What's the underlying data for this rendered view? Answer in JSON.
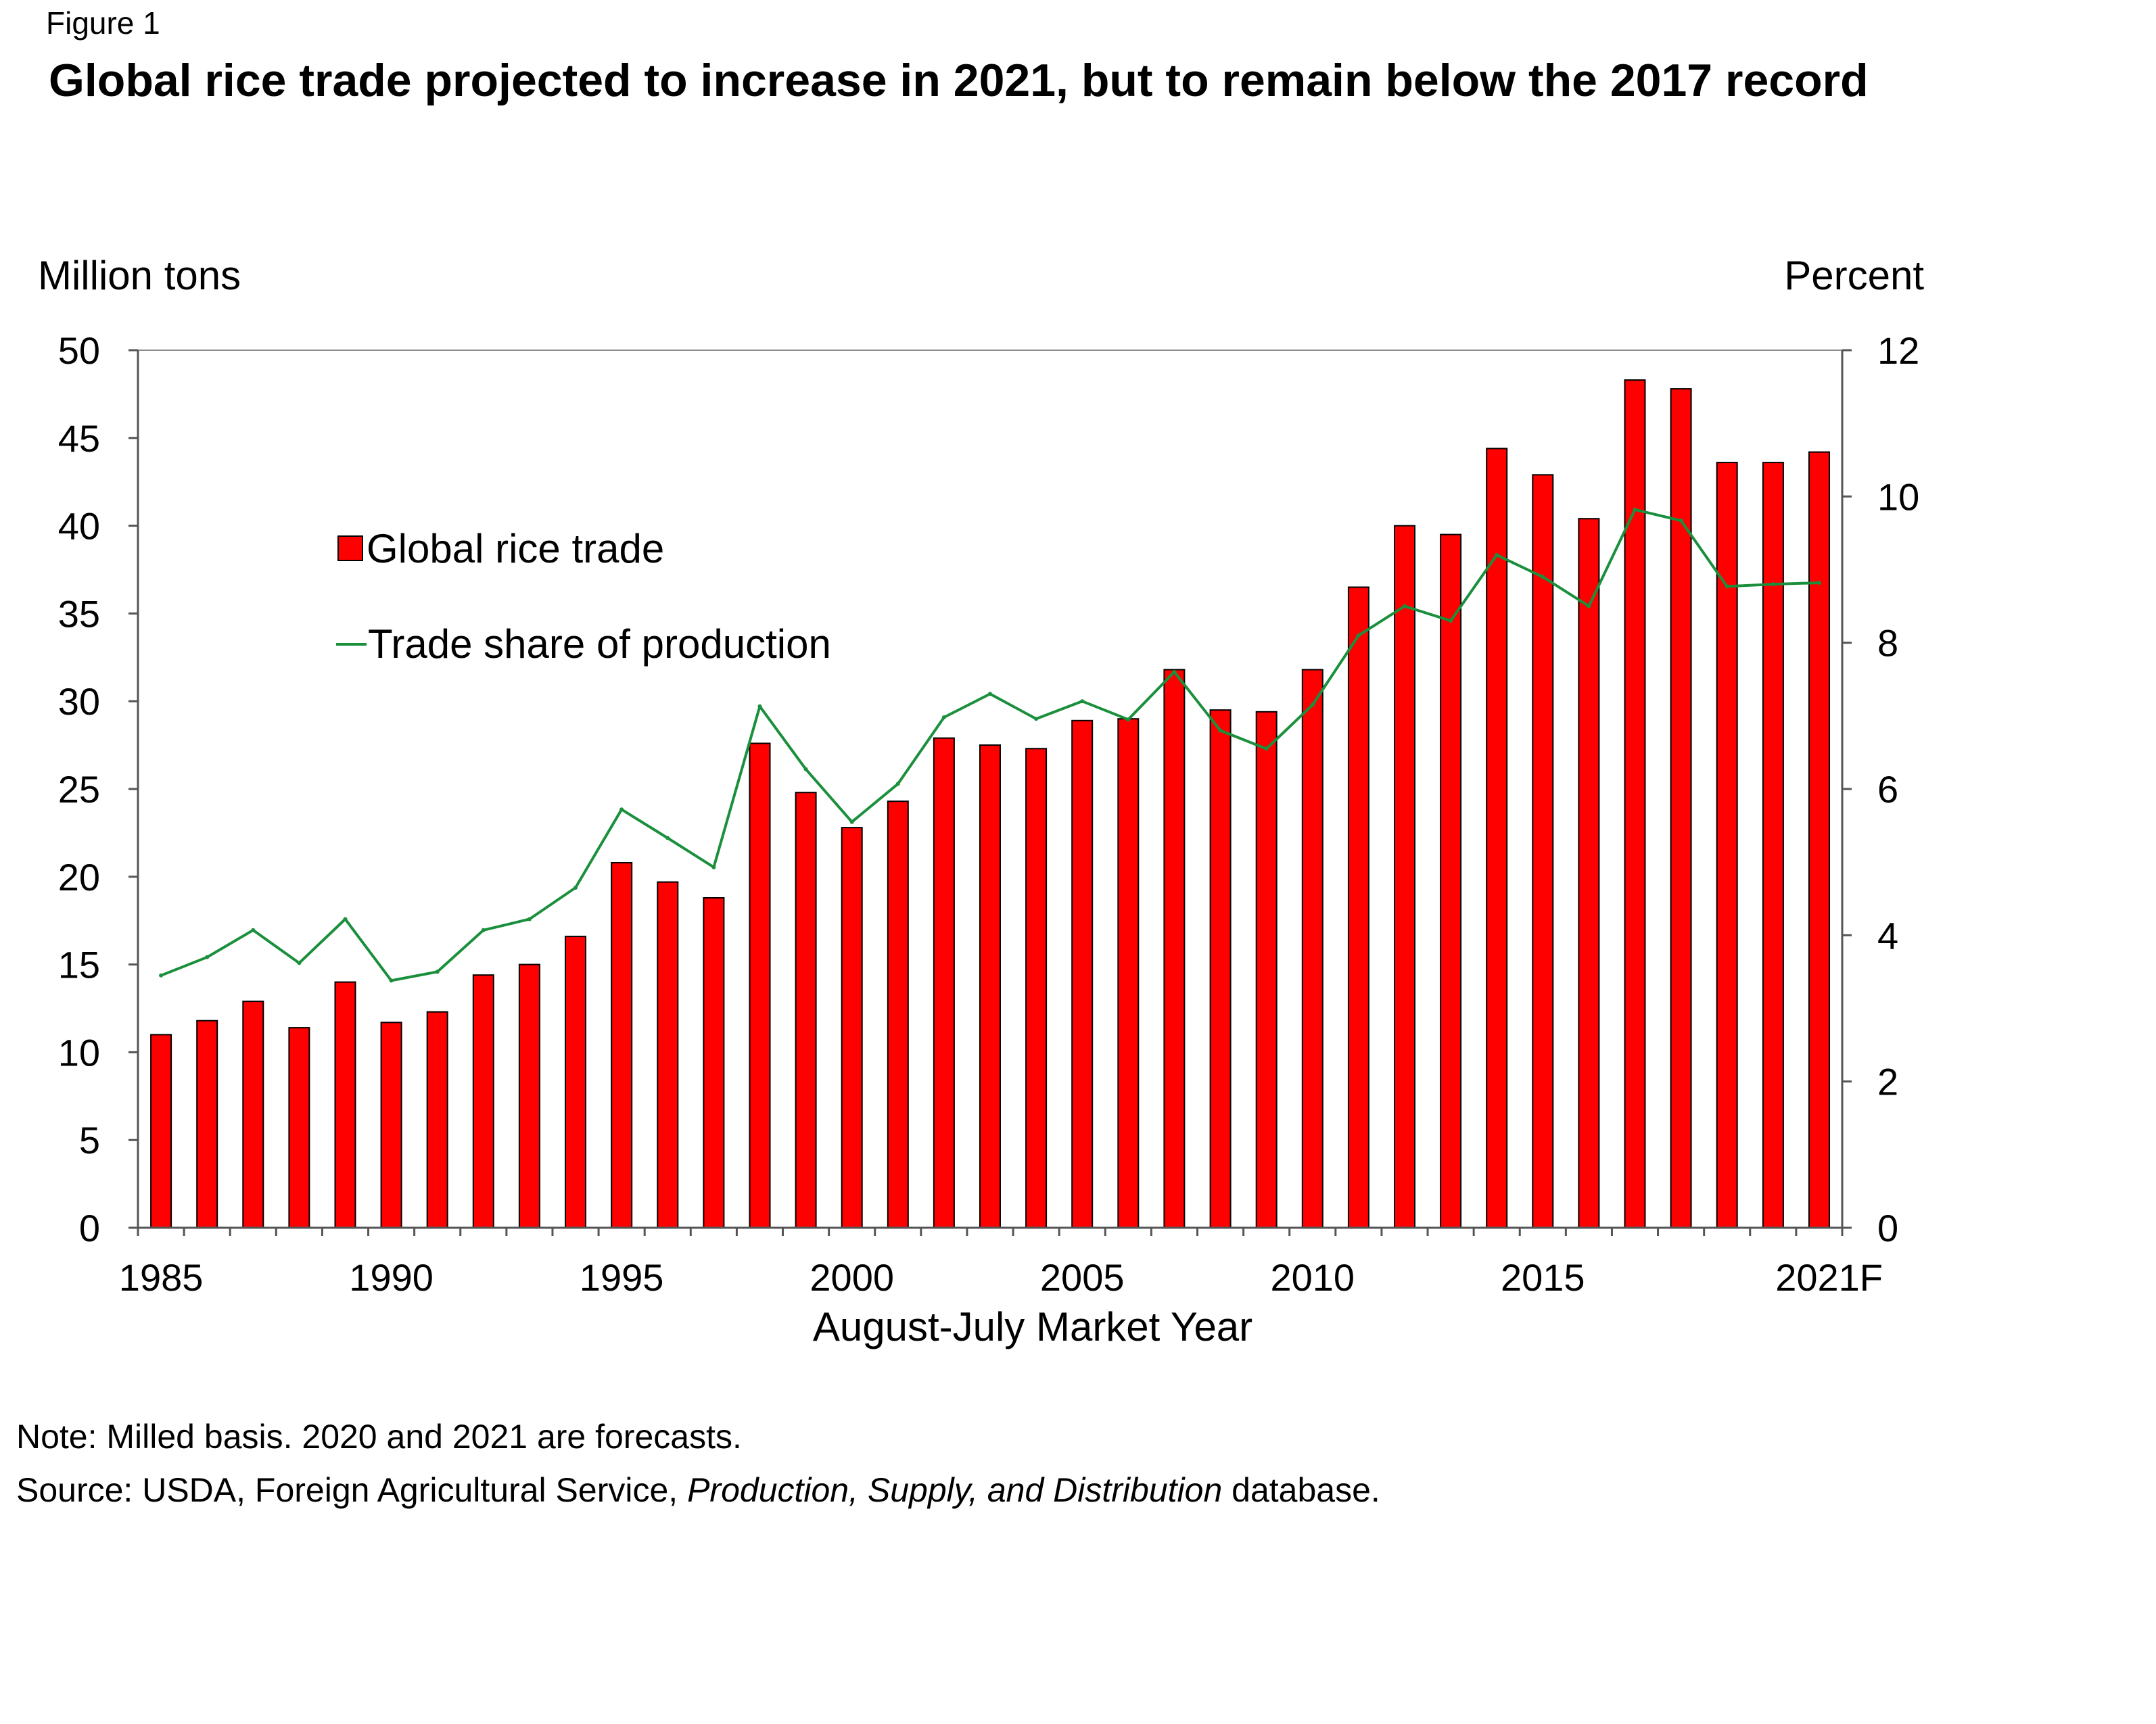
{
  "figure_label": "Figure 1",
  "title": "Global rice trade projected to increase in 2021, but to remain below the 2017 record",
  "note": {
    "line1": "Note: Milled basis. 2020 and 2021 are forecasts.",
    "source_prefix": "Source: USDA, Foreign Agricultural Service, ",
    "source_italic": "Production, Supply, and Distribution",
    "source_suffix": " database."
  },
  "colors": {
    "bar": "#ff0000",
    "bar_edge": "#000000",
    "line": "#1a8f3c"
  },
  "chart_data": {
    "type": "bar",
    "title": "Global rice trade projected to increase in 2021, but to remain below the 2017 record",
    "xlabel": "August-July Market Year",
    "ylabel": "Million tons",
    "y2label": "Percent",
    "ylim": [
      0,
      50
    ],
    "y2lim": [
      0,
      12
    ],
    "yticks": [
      "0",
      "5",
      "10",
      "15",
      "20",
      "25",
      "30",
      "35",
      "40",
      "45",
      "50"
    ],
    "y2ticks": [
      "0",
      "2",
      "4",
      "6",
      "8",
      "10",
      "12"
    ],
    "categories": [
      "1985",
      "1986",
      "1987",
      "1988",
      "1989",
      "1990",
      "1991",
      "1992",
      "1993",
      "1994",
      "1995",
      "1996",
      "1997",
      "1998",
      "1999",
      "2000",
      "2001",
      "2002",
      "2003",
      "2004",
      "2005",
      "2006",
      "2007",
      "2008",
      "2009",
      "2010",
      "2011",
      "2012",
      "2013",
      "2014",
      "2015",
      "2016",
      "2017",
      "2018",
      "2019",
      "2020",
      "2021F"
    ],
    "xtick_labels": [
      {
        "index": 0,
        "label": "1985"
      },
      {
        "index": 5,
        "label": "1990"
      },
      {
        "index": 10,
        "label": "1995"
      },
      {
        "index": 15,
        "label": "2000"
      },
      {
        "index": 20,
        "label": "2005"
      },
      {
        "index": 25,
        "label": "2010"
      },
      {
        "index": 30,
        "label": "2015"
      },
      {
        "index": 36,
        "label": "2021F"
      }
    ],
    "legend": {
      "placement": "upper-left"
    },
    "series": [
      {
        "name": "Global rice trade",
        "type": "bar",
        "axis": "left",
        "values": [
          11.0,
          11.8,
          12.9,
          11.4,
          14.0,
          11.7,
          12.3,
          14.4,
          15.0,
          16.6,
          20.8,
          19.7,
          18.8,
          27.6,
          24.8,
          22.8,
          24.3,
          27.9,
          27.5,
          27.3,
          28.9,
          29.0,
          31.8,
          29.5,
          29.4,
          31.8,
          36.5,
          40.0,
          39.5,
          44.4,
          42.9,
          40.4,
          48.3,
          47.8,
          43.6,
          43.6,
          44.2
        ]
      },
      {
        "name": "Trade share of production",
        "type": "line",
        "axis": "right",
        "values": [
          3.45,
          3.7,
          4.07,
          3.62,
          4.22,
          3.38,
          3.5,
          4.07,
          4.22,
          4.65,
          5.72,
          5.33,
          4.93,
          7.13,
          6.27,
          5.55,
          6.07,
          6.98,
          7.3,
          6.96,
          7.2,
          6.95,
          7.6,
          6.8,
          6.55,
          7.15,
          8.1,
          8.5,
          8.3,
          9.2,
          8.9,
          8.5,
          9.82,
          9.67,
          8.77,
          8.8,
          8.82
        ]
      }
    ]
  }
}
